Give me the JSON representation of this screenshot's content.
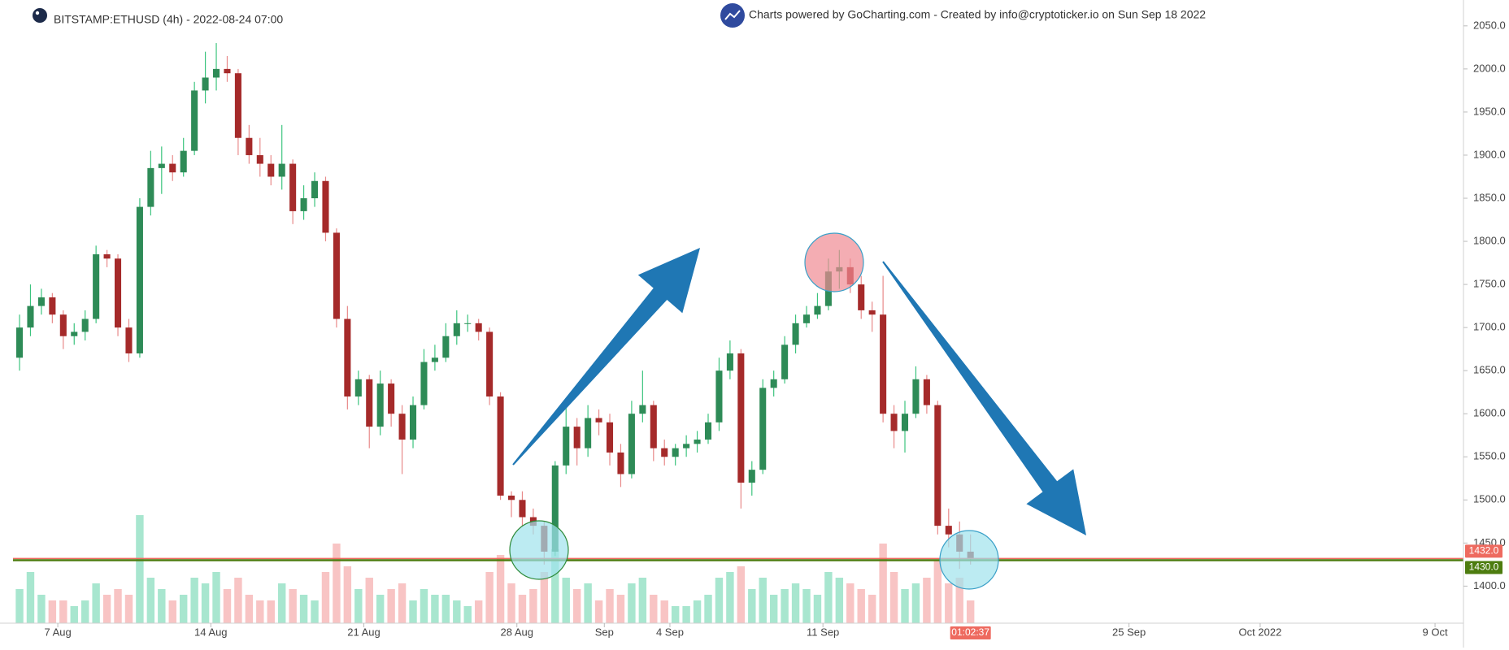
{
  "chart_data": {
    "type": "candlestick",
    "title": "BITSTAMP:ETHUSD (4h) - 2022-08-24 07:00",
    "subtitle": "Charts powered by GoCharting.com - Created by info@cryptoticker.io on Sun Sep 18 2022",
    "countdown": "01:02:37",
    "x": [
      5.25,
      5.75,
      6.25,
      6.75,
      7.25,
      7.75,
      8.25,
      8.75,
      9.25,
      9.75,
      10.25,
      10.75,
      11.25,
      11.75,
      12.25,
      12.75,
      13.25,
      13.75,
      14.25,
      14.75,
      15.25,
      15.75,
      16.25,
      16.75,
      17.25,
      17.75,
      18.25,
      18.75,
      19.25,
      19.75,
      20.25,
      20.75,
      21.25,
      21.75,
      22.25,
      22.75,
      23.25,
      23.75,
      24.25,
      24.75,
      25.25,
      25.75,
      26.25,
      26.75,
      27.25,
      27.75,
      28.25,
      28.75,
      29.25,
      29.75,
      30.25,
      30.75,
      31.25,
      31.75,
      32.25,
      32.75,
      33.25,
      33.75,
      34.25,
      34.75,
      35.25,
      35.75,
      36.25,
      36.75,
      37.25,
      37.75,
      38.25,
      38.75,
      39.25,
      39.75,
      40.25,
      40.75,
      41.25,
      41.75,
      42.25,
      42.75,
      43.25,
      43.75,
      44.25,
      44.75,
      45.25,
      45.75,
      46.25,
      46.75,
      47.25,
      47.75,
      48.25,
      48.75
    ],
    "open": [
      1665,
      1700,
      1725,
      1735,
      1715,
      1690,
      1695,
      1710,
      1785,
      1780,
      1700,
      1670,
      1840,
      1885,
      1890,
      1880,
      1905,
      1975,
      1990,
      2000,
      1995,
      1920,
      1900,
      1890,
      1875,
      1890,
      1835,
      1850,
      1870,
      1810,
      1710,
      1620,
      1640,
      1585,
      1635,
      1600,
      1570,
      1610,
      1660,
      1665,
      1690,
      1705,
      1705,
      1695,
      1620,
      1505,
      1500,
      1480,
      1470,
      1440,
      1540,
      1585,
      1560,
      1595,
      1590,
      1555,
      1530,
      1600,
      1610,
      1560,
      1550,
      1560,
      1565,
      1570,
      1590,
      1650,
      1670,
      1520,
      1535,
      1630,
      1640,
      1680,
      1705,
      1715,
      1725,
      1765,
      1770,
      1750,
      1720,
      1715,
      1600,
      1580,
      1600,
      1640,
      1610,
      1470,
      1460,
      1440
    ],
    "high": [
      1715,
      1750,
      1745,
      1740,
      1720,
      1705,
      1720,
      1795,
      1790,
      1785,
      1710,
      1850,
      1905,
      1910,
      1900,
      1920,
      1985,
      2020,
      2030,
      2015,
      2000,
      1935,
      1920,
      1900,
      1935,
      1895,
      1865,
      1880,
      1875,
      1815,
      1725,
      1650,
      1645,
      1650,
      1640,
      1610,
      1620,
      1675,
      1680,
      1705,
      1720,
      1715,
      1710,
      1700,
      1625,
      1510,
      1510,
      1490,
      1475,
      1545,
      1610,
      1595,
      1610,
      1605,
      1600,
      1565,
      1615,
      1650,
      1615,
      1570,
      1565,
      1575,
      1580,
      1600,
      1665,
      1685,
      1675,
      1545,
      1640,
      1650,
      1690,
      1715,
      1725,
      1740,
      1780,
      1790,
      1780,
      1760,
      1730,
      1760,
      1610,
      1615,
      1655,
      1645,
      1615,
      1490,
      1475,
      1460
    ],
    "low": [
      1650,
      1690,
      1715,
      1705,
      1675,
      1680,
      1685,
      1705,
      1770,
      1690,
      1660,
      1665,
      1830,
      1855,
      1870,
      1875,
      1900,
      1960,
      1975,
      1985,
      1900,
      1890,
      1875,
      1865,
      1860,
      1820,
      1825,
      1840,
      1800,
      1700,
      1605,
      1610,
      1560,
      1575,
      1585,
      1530,
      1560,
      1605,
      1650,
      1660,
      1680,
      1695,
      1685,
      1610,
      1500,
      1480,
      1470,
      1460,
      1425,
      1435,
      1530,
      1540,
      1550,
      1575,
      1540,
      1515,
      1525,
      1590,
      1545,
      1540,
      1540,
      1550,
      1555,
      1565,
      1580,
      1640,
      1490,
      1505,
      1530,
      1620,
      1635,
      1670,
      1700,
      1710,
      1720,
      1745,
      1740,
      1710,
      1695,
      1590,
      1560,
      1555,
      1595,
      1600,
      1460,
      1445,
      1420,
      1425
    ],
    "close": [
      1700,
      1725,
      1735,
      1715,
      1690,
      1695,
      1710,
      1785,
      1780,
      1700,
      1670,
      1840,
      1885,
      1890,
      1880,
      1905,
      1975,
      1990,
      2000,
      1995,
      1920,
      1900,
      1890,
      1875,
      1890,
      1835,
      1850,
      1870,
      1810,
      1710,
      1620,
      1640,
      1585,
      1635,
      1600,
      1570,
      1610,
      1660,
      1665,
      1690,
      1705,
      1705,
      1695,
      1620,
      1505,
      1500,
      1480,
      1470,
      1440,
      1540,
      1585,
      1560,
      1595,
      1590,
      1555,
      1530,
      1600,
      1610,
      1560,
      1550,
      1560,
      1565,
      1570,
      1590,
      1650,
      1670,
      1520,
      1535,
      1630,
      1640,
      1680,
      1705,
      1715,
      1725,
      1765,
      1770,
      1750,
      1720,
      1715,
      1600,
      1580,
      1600,
      1640,
      1610,
      1470,
      1460,
      1440,
      1432
    ],
    "volume": [
      30,
      45,
      25,
      20,
      20,
      15,
      20,
      35,
      25,
      30,
      25,
      95,
      40,
      30,
      20,
      25,
      40,
      35,
      45,
      30,
      40,
      25,
      20,
      20,
      35,
      30,
      25,
      20,
      45,
      70,
      50,
      30,
      40,
      25,
      30,
      35,
      20,
      30,
      25,
      25,
      20,
      15,
      20,
      45,
      60,
      35,
      25,
      30,
      45,
      65,
      40,
      30,
      35,
      20,
      30,
      25,
      35,
      40,
      25,
      20,
      15,
      15,
      20,
      25,
      40,
      45,
      50,
      30,
      40,
      25,
      30,
      35,
      30,
      25,
      45,
      40,
      35,
      30,
      25,
      70,
      45,
      30,
      35,
      40,
      55,
      35,
      40,
      20
    ],
    "volume_lim": [
      0,
      100
    ],
    "up_color": "#2e8b57",
    "down_color": "#a52a2a",
    "volume_up_color": "#a8e6cf",
    "volume_down_color": "#f8c4c4",
    "xlim": [
      5.1,
      71.3
    ],
    "xticks": [
      {
        "value": 7,
        "label": "7 Aug"
      },
      {
        "value": 14,
        "label": "14 Aug"
      },
      {
        "value": 21,
        "label": "21 Aug"
      },
      {
        "value": 28,
        "label": "28 Aug"
      },
      {
        "value": 32,
        "label": "Sep"
      },
      {
        "value": 35,
        "label": "4 Sep"
      },
      {
        "value": 42,
        "label": "11 Sep"
      },
      {
        "value": 56,
        "label": "25 Sep"
      },
      {
        "value": 62,
        "label": "Oct 2022"
      },
      {
        "value": 70,
        "label": "9 Oct"
      }
    ],
    "ylim": [
      1357,
      2080
    ],
    "yticks": [
      {
        "value": 1400,
        "label": "1400.0"
      },
      {
        "value": 1450,
        "label": "1450.0"
      },
      {
        "value": 1500,
        "label": "1500.0"
      },
      {
        "value": 1550,
        "label": "1550.0"
      },
      {
        "value": 1600,
        "label": "1600.0"
      },
      {
        "value": 1650,
        "label": "1650.0"
      },
      {
        "value": 1700,
        "label": "1700.0"
      },
      {
        "value": 1750,
        "label": "1750.0"
      },
      {
        "value": 1800,
        "label": "1800.0"
      },
      {
        "value": 1850,
        "label": "1850.0"
      },
      {
        "value": 1900,
        "label": "1900.0"
      },
      {
        "value": 1950,
        "label": "1950.0"
      },
      {
        "value": 2000,
        "label": "2000.0"
      },
      {
        "value": 2050,
        "label": "2050.0"
      }
    ],
    "grid": false,
    "price_lines": [
      {
        "value": 1432,
        "label": "1432.0",
        "color": "#ee6a5f"
      },
      {
        "value": 1430,
        "label": "1430.0",
        "color": "#4d7c0f"
      }
    ]
  }
}
